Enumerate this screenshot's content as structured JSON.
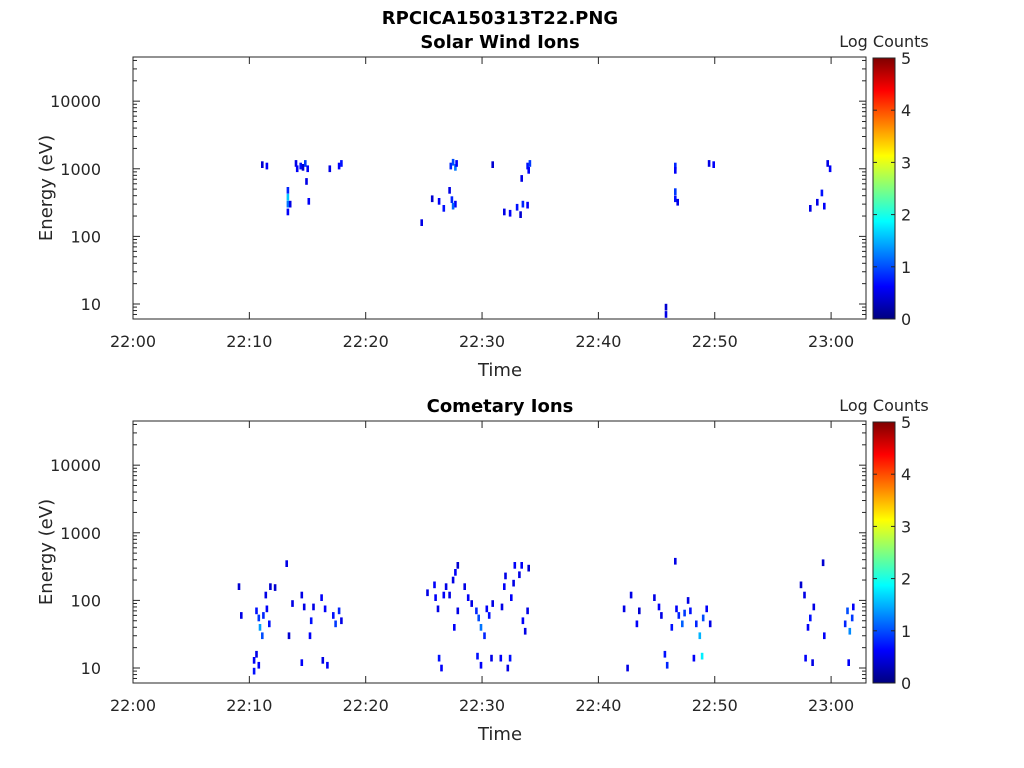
{
  "figure_title": "RPCICA150313T22.PNG",
  "chart_data": [
    {
      "type": "heatmap",
      "title": "Solar Wind Ions",
      "xlabel": "Time",
      "ylabel": "Energy (eV)",
      "x_ticks": [
        "22:00",
        "22:10",
        "22:20",
        "22:30",
        "22:40",
        "22:50",
        "23:00"
      ],
      "x_tick_minutes": [
        0,
        10,
        20,
        30,
        40,
        50,
        60
      ],
      "xlim_minutes": [
        0,
        63
      ],
      "yscale": "log",
      "ylim": [
        6,
        45000
      ],
      "y_ticks": [
        "10",
        "100",
        "1000",
        "10000"
      ],
      "y_tick_values": [
        10,
        100,
        1000,
        10000
      ],
      "colorbar": {
        "label": "Log Counts",
        "range": [
          0,
          5
        ],
        "ticks": [
          "0",
          "1",
          "2",
          "3",
          "4",
          "5"
        ],
        "colormap": "jet"
      },
      "cells": [
        [
          11,
          1150,
          0.4
        ],
        [
          11.4,
          1100,
          0.6
        ],
        [
          13.2,
          480,
          0.8
        ],
        [
          13.2,
          380,
          1.6
        ],
        [
          13.2,
          300,
          1.2
        ],
        [
          13.2,
          230,
          0.6
        ],
        [
          13.4,
          300,
          0.5
        ],
        [
          13.9,
          1200,
          0.5
        ],
        [
          14,
          1000,
          0.6
        ],
        [
          14.3,
          1100,
          0.7
        ],
        [
          14.5,
          1050,
          0.4
        ],
        [
          14.7,
          1200,
          0.9
        ],
        [
          14.9,
          1000,
          0.6
        ],
        [
          14.8,
          650,
          0.5
        ],
        [
          15,
          330,
          0.6
        ],
        [
          16.8,
          1000,
          0.5
        ],
        [
          17.6,
          1100,
          0.6
        ],
        [
          17.8,
          1200,
          0.7
        ],
        [
          24.7,
          160,
          0.5
        ],
        [
          25.6,
          360,
          0.4
        ],
        [
          26.2,
          330,
          0.6
        ],
        [
          26.6,
          260,
          0.7
        ],
        [
          27.2,
          1100,
          0.8
        ],
        [
          27.4,
          1250,
          1.0
        ],
        [
          27.6,
          1050,
          1.2
        ],
        [
          27.7,
          1200,
          0.6
        ],
        [
          27.1,
          480,
          0.5
        ],
        [
          27.3,
          350,
          0.8
        ],
        [
          27.6,
          300,
          0.6
        ],
        [
          27.4,
          280,
          1.1
        ],
        [
          30.8,
          1150,
          0.4
        ],
        [
          33.3,
          720,
          0.5
        ],
        [
          33.8,
          1100,
          0.7
        ],
        [
          34,
          1200,
          0.9
        ],
        [
          33.9,
          950,
          0.6
        ],
        [
          31.8,
          230,
          0.5
        ],
        [
          32.3,
          220,
          0.6
        ],
        [
          32.9,
          270,
          0.7
        ],
        [
          33.4,
          300,
          0.8
        ],
        [
          33.8,
          290,
          0.6
        ],
        [
          33.2,
          210,
          0.4
        ],
        [
          45.7,
          9,
          0.4
        ],
        [
          45.7,
          7,
          0.5
        ],
        [
          46.5,
          1100,
          0.8
        ],
        [
          46.5,
          950,
          0.6
        ],
        [
          46.5,
          460,
          0.9
        ],
        [
          46.5,
          360,
          0.7
        ],
        [
          46.7,
          320,
          0.5
        ],
        [
          49.4,
          1200,
          0.5
        ],
        [
          49.8,
          1150,
          0.6
        ],
        [
          58.1,
          260,
          0.5
        ],
        [
          58.7,
          320,
          0.5
        ],
        [
          59.1,
          440,
          0.7
        ],
        [
          59.3,
          280,
          0.6
        ],
        [
          59.6,
          1200,
          0.5
        ],
        [
          59.8,
          1000,
          0.6
        ]
      ]
    },
    {
      "type": "heatmap",
      "title": "Cometary Ions",
      "xlabel": "Time",
      "ylabel": "Energy (eV)",
      "x_ticks": [
        "22:00",
        "22:10",
        "22:20",
        "22:30",
        "22:40",
        "22:50",
        "23:00"
      ],
      "x_tick_minutes": [
        0,
        10,
        20,
        30,
        40,
        50,
        60
      ],
      "xlim_minutes": [
        0,
        63
      ],
      "yscale": "log",
      "ylim": [
        6,
        45000
      ],
      "y_ticks": [
        "10",
        "100",
        "1000",
        "10000"
      ],
      "y_tick_values": [
        10,
        100,
        1000,
        10000
      ],
      "colorbar": {
        "label": "Log Counts",
        "range": [
          0,
          5
        ],
        "ticks": [
          "0",
          "1",
          "2",
          "3",
          "4",
          "5"
        ],
        "colormap": "jet"
      },
      "cells": [
        [
          9,
          160,
          0.4
        ],
        [
          9.2,
          60,
          0.5
        ],
        [
          10.3,
          13,
          0.6
        ],
        [
          10.3,
          9,
          0.7
        ],
        [
          10.5,
          16,
          0.5
        ],
        [
          10.7,
          11,
          0.6
        ],
        [
          10.5,
          70,
          0.7
        ],
        [
          10.7,
          55,
          0.9
        ],
        [
          10.8,
          40,
          1.4
        ],
        [
          11,
          30,
          1.0
        ],
        [
          11.1,
          60,
          0.8
        ],
        [
          11.4,
          75,
          0.6
        ],
        [
          11.6,
          45,
          0.7
        ],
        [
          11.3,
          120,
          0.5
        ],
        [
          11.7,
          160,
          0.4
        ],
        [
          12.1,
          155,
          0.4
        ],
        [
          13.1,
          350,
          0.5
        ],
        [
          13.3,
          30,
          0.4
        ],
        [
          13.6,
          90,
          0.5
        ],
        [
          14.4,
          120,
          0.5
        ],
        [
          14.6,
          80,
          0.5
        ],
        [
          14.4,
          12,
          0.6
        ],
        [
          15.1,
          30,
          0.6
        ],
        [
          15.2,
          50,
          0.7
        ],
        [
          15.4,
          80,
          0.5
        ],
        [
          16.1,
          110,
          0.6
        ],
        [
          16.4,
          75,
          0.6
        ],
        [
          16.2,
          13,
          0.5
        ],
        [
          16.6,
          11,
          0.6
        ],
        [
          17.1,
          60,
          0.7
        ],
        [
          17.3,
          45,
          0.9
        ],
        [
          17.6,
          70,
          0.8
        ],
        [
          17.8,
          50,
          0.5
        ],
        [
          25.2,
          130,
          0.5
        ],
        [
          25.8,
          170,
          0.6
        ],
        [
          25.9,
          110,
          0.6
        ],
        [
          26.1,
          75,
          0.5
        ],
        [
          26.2,
          14,
          0.7
        ],
        [
          26.4,
          10,
          0.6
        ],
        [
          26.6,
          120,
          0.6
        ],
        [
          26.8,
          160,
          0.5
        ],
        [
          27.1,
          120,
          0.5
        ],
        [
          27.5,
          40,
          0.6
        ],
        [
          27.8,
          70,
          0.5
        ],
        [
          27.4,
          200,
          0.5
        ],
        [
          27.6,
          260,
          0.6
        ],
        [
          27.8,
          330,
          0.4
        ],
        [
          28.4,
          160,
          0.5
        ],
        [
          28.7,
          110,
          0.6
        ],
        [
          29,
          90,
          0.5
        ],
        [
          29.4,
          70,
          0.8
        ],
        [
          29.6,
          55,
          1.0
        ],
        [
          29.8,
          40,
          1.2
        ],
        [
          29.5,
          15,
          0.7
        ],
        [
          29.8,
          11,
          0.6
        ],
        [
          30.1,
          30,
          0.8
        ],
        [
          30.3,
          75,
          0.6
        ],
        [
          30.5,
          60,
          0.7
        ],
        [
          30.7,
          14,
          0.5
        ],
        [
          30.8,
          90,
          0.5
        ],
        [
          31.5,
          14,
          0.6
        ],
        [
          31.6,
          80,
          0.5
        ],
        [
          31.8,
          160,
          0.6
        ],
        [
          31.9,
          230,
          0.5
        ],
        [
          32.1,
          10,
          0.5
        ],
        [
          32.3,
          14,
          0.7
        ],
        [
          32.4,
          110,
          0.6
        ],
        [
          32.6,
          180,
          0.5
        ],
        [
          32.7,
          330,
          0.6
        ],
        [
          33.1,
          240,
          0.5
        ],
        [
          33.3,
          330,
          0.6
        ],
        [
          33.4,
          50,
          0.6
        ],
        [
          33.6,
          35,
          0.5
        ],
        [
          33.8,
          70,
          0.5
        ],
        [
          33.9,
          300,
          0.4
        ],
        [
          42.1,
          75,
          0.5
        ],
        [
          42.4,
          10,
          0.5
        ],
        [
          42.7,
          120,
          0.5
        ],
        [
          43.2,
          45,
          0.6
        ],
        [
          43.4,
          70,
          0.4
        ],
        [
          44.7,
          110,
          0.5
        ],
        [
          45.1,
          80,
          0.6
        ],
        [
          45.3,
          60,
          0.5
        ],
        [
          45.6,
          16,
          0.7
        ],
        [
          45.8,
          11,
          0.8
        ],
        [
          46.2,
          40,
          0.7
        ],
        [
          46.5,
          380,
          0.5
        ],
        [
          46.6,
          75,
          0.6
        ],
        [
          46.8,
          60,
          0.8
        ],
        [
          47.1,
          45,
          1.1
        ],
        [
          47.3,
          65,
          0.9
        ],
        [
          47.6,
          100,
          0.5
        ],
        [
          47.8,
          70,
          0.7
        ],
        [
          48.1,
          14,
          0.6
        ],
        [
          48.3,
          45,
          0.8
        ],
        [
          48.6,
          30,
          1.5
        ],
        [
          48.8,
          15,
          1.8
        ],
        [
          48.9,
          55,
          1.0
        ],
        [
          49.2,
          75,
          0.6
        ],
        [
          49.5,
          45,
          0.5
        ],
        [
          57.3,
          170,
          0.4
        ],
        [
          57.6,
          120,
          0.5
        ],
        [
          57.7,
          14,
          0.6
        ],
        [
          57.9,
          40,
          0.6
        ],
        [
          58.1,
          55,
          0.7
        ],
        [
          58.3,
          12,
          0.5
        ],
        [
          58.4,
          80,
          0.5
        ],
        [
          59.2,
          360,
          0.4
        ],
        [
          59.3,
          30,
          0.6
        ],
        [
          61.1,
          45,
          0.8
        ],
        [
          61.3,
          70,
          1.0
        ],
        [
          61.5,
          35,
          1.3
        ],
        [
          61.7,
          55,
          0.9
        ],
        [
          61.4,
          12,
          0.6
        ],
        [
          61.8,
          80,
          0.6
        ]
      ]
    }
  ]
}
